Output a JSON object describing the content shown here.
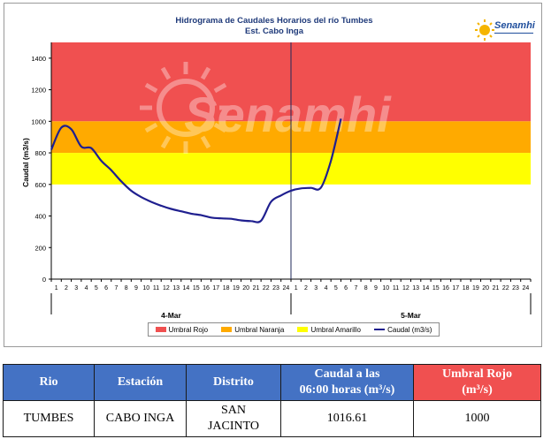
{
  "chart_data": {
    "type": "line",
    "title": "Hidrograma de Caudales Horarios del río Tumbes",
    "subtitle": "Est. Cabo Inga",
    "ylabel": "Caudal  (m3/s)",
    "xlabel": "",
    "ylim": [
      0,
      1500
    ],
    "yticks": [
      0,
      200,
      400,
      600,
      800,
      1000,
      1200,
      1400
    ],
    "x_tick_labels": [
      "1",
      "2",
      "3",
      "4",
      "5",
      "6",
      "7",
      "8",
      "9",
      "10",
      "11",
      "12",
      "13",
      "14",
      "15",
      "16",
      "17",
      "18",
      "19",
      "20",
      "21",
      "22",
      "23",
      "24",
      "1",
      "2",
      "3",
      "4",
      "5",
      "6",
      "7",
      "8",
      "9",
      "10",
      "11",
      "12",
      "13",
      "14",
      "15",
      "16",
      "17",
      "18",
      "19",
      "20",
      "21",
      "22",
      "23",
      "24"
    ],
    "x_groups": [
      {
        "label": "4-Mar"
      },
      {
        "label": "5-Mar"
      }
    ],
    "thresholds": [
      {
        "name": "Umbral Rojo",
        "from": 1000,
        "to": 1500,
        "color": "#f05050"
      },
      {
        "name": "Umbral Naranja",
        "from": 800,
        "to": 1000,
        "color": "#ffaa00"
      },
      {
        "name": "Umbral Amarillo",
        "from": 600,
        "to": 800,
        "color": "#ffff00"
      }
    ],
    "series": [
      {
        "name": "Caudal (m3/s)",
        "color": "#1f1f8f",
        "x": [
          1,
          2,
          3,
          4,
          5,
          6,
          7,
          8,
          9,
          10,
          11,
          12,
          13,
          14,
          15,
          16,
          17,
          18,
          19,
          20,
          21,
          22,
          23,
          24,
          25,
          26,
          27,
          28,
          29,
          30
        ],
        "values": [
          820,
          960,
          950,
          840,
          830,
          750,
          690,
          620,
          560,
          520,
          490,
          465,
          445,
          430,
          415,
          405,
          390,
          385,
          382,
          372,
          368,
          370,
          490,
          530,
          560,
          575,
          578,
          580,
          750,
          1016.61
        ]
      }
    ],
    "legend_position": "bottom",
    "grid": false
  },
  "logo": {
    "name": "Senamhi",
    "watermark": "Senamhi"
  },
  "table": {
    "headers": [
      {
        "text": "Rio",
        "bg": "#4472c4"
      },
      {
        "text": "Estación",
        "bg": "#4472c4"
      },
      {
        "text": "Distrito",
        "bg": "#4472c4"
      },
      {
        "text_line1": "Caudal a las",
        "text_line2": "06:00 horas (m³/s)",
        "bg": "#4472c4"
      },
      {
        "text_line1": "Umbral Rojo",
        "text_line2": "(m³/s)",
        "bg": "#f05050"
      }
    ],
    "row": {
      "rio": "TUMBES",
      "estacion": "CABO INGA",
      "distrito_line1": "SAN",
      "distrito_line2": "JACINTO",
      "caudal": "1016.61",
      "umbral_rojo": "1000"
    }
  }
}
